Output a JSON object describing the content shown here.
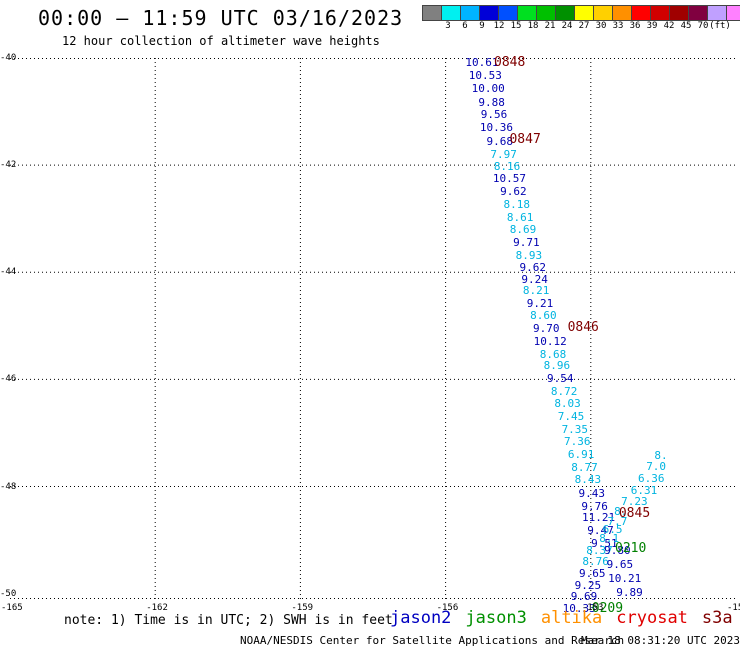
{
  "header": {
    "title": "00:00 – 11:59 UTC 03/16/2023",
    "subtitle": "12 hour collection of altimeter wave heights"
  },
  "legend": {
    "swatches": [
      {
        "color": "#808080",
        "label": ""
      },
      {
        "color": "#00f0f0",
        "label": "3"
      },
      {
        "color": "#00b4ff",
        "label": "6"
      },
      {
        "color": "#0000d8",
        "label": "9"
      },
      {
        "color": "#0050ff",
        "label": "12"
      },
      {
        "color": "#00e020",
        "label": "15"
      },
      {
        "color": "#00c000",
        "label": "18"
      },
      {
        "color": "#009000",
        "label": "21"
      },
      {
        "color": "#ffff00",
        "label": "24"
      },
      {
        "color": "#ffd000",
        "label": "27"
      },
      {
        "color": "#ff9000",
        "label": "30"
      },
      {
        "color": "#ff0000",
        "label": "33"
      },
      {
        "color": "#d00000",
        "label": "36"
      },
      {
        "color": "#a00000",
        "label": "39"
      },
      {
        "color": "#800040",
        "label": "42"
      },
      {
        "color": "#c0a0ff",
        "label": "45"
      },
      {
        "color": "#ff80ff",
        "label": "70"
      },
      {
        "color": "#000000",
        "label": "(ft)"
      }
    ]
  },
  "axes": {
    "lon_ticks": [
      "-165",
      "-162",
      "-159",
      "-156",
      "-153",
      "-15"
    ],
    "lat_ticks": [
      "-40",
      "-42",
      "-44",
      "-46",
      "-48",
      "-50"
    ]
  },
  "colors": {
    "jason2": "#0000c0",
    "jason3": "#009000",
    "altika": "#ff9000",
    "cryosat": "#e00000",
    "s3a": "#800000",
    "light": "#00b4e0",
    "dark": "#0000b0",
    "time": "#800000",
    "time2": "#008000"
  },
  "observations": [
    {
      "text": "10.61",
      "c": "dark",
      "lon": -155.25,
      "lat": -40.05
    },
    {
      "text": "10.53",
      "c": "dark",
      "lon": -155.18,
      "lat": -40.3
    },
    {
      "text": "10.00",
      "c": "dark",
      "lon": -155.12,
      "lat": -40.55
    },
    {
      "text": "9.88",
      "c": "dark",
      "lon": -155.05,
      "lat": -40.8
    },
    {
      "text": "9.56",
      "c": "dark",
      "lon": -155.0,
      "lat": -41.03
    },
    {
      "text": "10.36",
      "c": "dark",
      "lon": -154.95,
      "lat": -41.27
    },
    {
      "text": "9.68",
      "c": "dark",
      "lon": -154.88,
      "lat": -41.53
    },
    {
      "text": "7.97",
      "c": "light",
      "lon": -154.8,
      "lat": -41.78
    },
    {
      "text": "8.16",
      "c": "light",
      "lon": -154.73,
      "lat": -42.0
    },
    {
      "text": "10.57",
      "c": "dark",
      "lon": -154.68,
      "lat": -42.23
    },
    {
      "text": "9.62",
      "c": "dark",
      "lon": -154.6,
      "lat": -42.47
    },
    {
      "text": "8.18",
      "c": "light",
      "lon": -154.53,
      "lat": -42.7
    },
    {
      "text": "8.61",
      "c": "light",
      "lon": -154.46,
      "lat": -42.95
    },
    {
      "text": "8.69",
      "c": "light",
      "lon": -154.4,
      "lat": -43.18
    },
    {
      "text": "9.71",
      "c": "dark",
      "lon": -154.33,
      "lat": -43.42
    },
    {
      "text": "8.93",
      "c": "light",
      "lon": -154.28,
      "lat": -43.65
    },
    {
      "text": "9.62",
      "c": "dark",
      "lon": -154.2,
      "lat": -43.88
    },
    {
      "text": "9.24",
      "c": "dark",
      "lon": -154.16,
      "lat": -44.1
    },
    {
      "text": "8.21",
      "c": "light",
      "lon": -154.13,
      "lat": -44.32
    },
    {
      "text": "9.21",
      "c": "dark",
      "lon": -154.05,
      "lat": -44.55
    },
    {
      "text": "8.60",
      "c": "light",
      "lon": -153.98,
      "lat": -44.78
    },
    {
      "text": "9.70",
      "c": "dark",
      "lon": -153.92,
      "lat": -45.02
    },
    {
      "text": "10.12",
      "c": "dark",
      "lon": -153.84,
      "lat": -45.27
    },
    {
      "text": "8.68",
      "c": "light",
      "lon": -153.78,
      "lat": -45.5
    },
    {
      "text": "8.96",
      "c": "light",
      "lon": -153.7,
      "lat": -45.72
    },
    {
      "text": "9.54",
      "c": "dark",
      "lon": -153.63,
      "lat": -45.95
    },
    {
      "text": "8.72",
      "c": "light",
      "lon": -153.55,
      "lat": -46.2
    },
    {
      "text": "8.03",
      "c": "light",
      "lon": -153.48,
      "lat": -46.43
    },
    {
      "text": "7.45",
      "c": "light",
      "lon": -153.41,
      "lat": -46.67
    },
    {
      "text": "7.35",
      "c": "light",
      "lon": -153.33,
      "lat": -46.9
    },
    {
      "text": "7.36",
      "c": "light",
      "lon": -153.28,
      "lat": -47.13
    },
    {
      "text": "6.91",
      "c": "light",
      "lon": -153.2,
      "lat": -47.38
    },
    {
      "text": "8.77",
      "c": "light",
      "lon": -153.13,
      "lat": -47.62
    },
    {
      "text": "8.43",
      "c": "light",
      "lon": -153.06,
      "lat": -47.85
    },
    {
      "text": "9.43",
      "c": "dark",
      "lon": -152.98,
      "lat": -48.1
    },
    {
      "text": "9.76",
      "c": "dark",
      "lon": -152.92,
      "lat": -48.35
    },
    {
      "text": "11.21",
      "c": "dark",
      "lon": -152.84,
      "lat": -48.55
    },
    {
      "text": "9.47",
      "c": "dark",
      "lon": -152.8,
      "lat": -48.8
    },
    {
      "text": "9.51",
      "c": "dark",
      "lon": -152.72,
      "lat": -49.03
    },
    {
      "text": "8.37",
      "c": "light",
      "lon": -152.82,
      "lat": -49.17
    },
    {
      "text": "8.76",
      "c": "light",
      "lon": -152.9,
      "lat": -49.38
    },
    {
      "text": "9.65",
      "c": "dark",
      "lon": -152.97,
      "lat": -49.6
    },
    {
      "text": "9.25",
      "c": "dark",
      "lon": -153.06,
      "lat": -49.82
    },
    {
      "text": "9.69",
      "c": "dark",
      "lon": -153.14,
      "lat": -50.03
    },
    {
      "text": "10.33",
      "c": "dark",
      "lon": -153.24,
      "lat": -50.25
    },
    {
      "text": "9.80",
      "c": "dark",
      "lon": -152.45,
      "lat": -49.17
    },
    {
      "text": "9.65",
      "c": "dark",
      "lon": -152.4,
      "lat": -49.42
    },
    {
      "text": "10.21",
      "c": "dark",
      "lon": -152.3,
      "lat": -49.68
    },
    {
      "text": "9.89",
      "c": "dark",
      "lon": -152.2,
      "lat": -49.95
    },
    {
      "text": "6.31",
      "c": "light",
      "lon": -151.9,
      "lat": -48.05
    },
    {
      "text": "6.36",
      "c": "light",
      "lon": -151.75,
      "lat": -47.82
    },
    {
      "text": "7.0",
      "c": "light",
      "lon": -151.65,
      "lat": -47.6
    },
    {
      "text": "8.",
      "c": "light",
      "lon": -151.55,
      "lat": -47.4
    },
    {
      "text": "7.23",
      "c": "light",
      "lon": -152.1,
      "lat": -48.25
    },
    {
      "text": "8.",
      "c": "light",
      "lon": -152.38,
      "lat": -48.43
    },
    {
      "text": "7.7",
      "c": "light",
      "lon": -152.45,
      "lat": -48.62
    },
    {
      "text": "6.5",
      "c": "light",
      "lon": -152.55,
      "lat": -48.78
    },
    {
      "text": "8.1",
      "c": "light",
      "lon": -152.62,
      "lat": -48.95
    }
  ],
  "time_marks": [
    {
      "text": "0848",
      "c": "time",
      "lon": -155.0,
      "lat": -40.05
    },
    {
      "text": "0847",
      "c": "time",
      "lon": -154.68,
      "lat": -41.5
    },
    {
      "text": "0846",
      "c": "time",
      "lon": -153.48,
      "lat": -45.0
    },
    {
      "text": "0845",
      "c": "time",
      "lon": -152.42,
      "lat": -48.48
    },
    {
      "text": "0210",
      "c": "time2",
      "lon": -152.5,
      "lat": -49.12
    },
    {
      "text": "0209",
      "c": "time2",
      "lon": -152.98,
      "lat": -50.25
    }
  ],
  "footer": {
    "note": "note: 1) Time is in UTC; 2) SWH is in feet",
    "satellites": [
      {
        "name": "jason2",
        "c": "jason2"
      },
      {
        "name": "jason3",
        "c": "jason3"
      },
      {
        "name": "altika",
        "c": "altika"
      },
      {
        "name": "cryosat",
        "c": "cryosat"
      },
      {
        "name": "s3a",
        "c": "s3a"
      }
    ],
    "credit": "NOAA/NESDIS Center for Satellite Applications and Research",
    "stamp": "Mar 18 08:31:20 UTC 2023"
  }
}
